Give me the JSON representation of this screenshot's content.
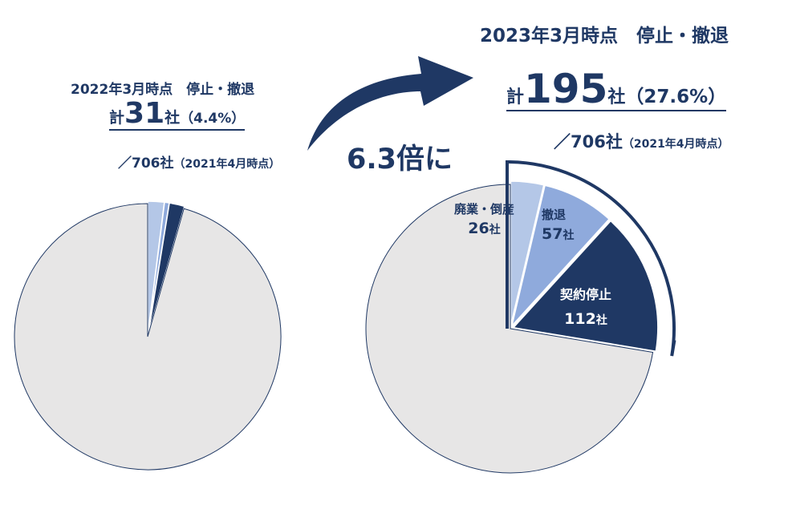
{
  "chart_data": [
    {
      "type": "pie",
      "title": "2022年3月時点　停止・撤退",
      "total_prefix": "計",
      "total_value": "31",
      "total_suffix": "社",
      "total_pct": "（4.4%）",
      "denominator": "／706社",
      "denominator_note": "（2021年4月時点）",
      "base_total": 706,
      "slices": [
        {
          "label": "",
          "value": 14,
          "color": "#b4c7e7",
          "exploded": true
        },
        {
          "label": "",
          "value": 4,
          "color": "#8faadc",
          "exploded": true
        },
        {
          "label": "",
          "value": 13,
          "color": "#1f3864",
          "exploded": true
        },
        {
          "label": "",
          "value": 675,
          "color": "#e7e6e6",
          "exploded": false
        }
      ]
    },
    {
      "type": "pie",
      "title": "2023年3月時点　停止・撤退",
      "total_prefix": "計",
      "total_value": "195",
      "total_suffix": "社",
      "total_pct": "（27.6%）",
      "denominator": "／706社",
      "denominator_note": "（2021年4月時点）",
      "base_total": 706,
      "slices": [
        {
          "label": "廃業・倒産",
          "count": "26",
          "unit": "社",
          "value": 26,
          "color": "#b4c7e7",
          "exploded": true
        },
        {
          "label": "撤退",
          "count": "57",
          "unit": "社",
          "value": 57,
          "color": "#8faadc",
          "exploded": true
        },
        {
          "label": "契約停止",
          "count": "112",
          "unit": "社",
          "value": 112,
          "color": "#1f3864",
          "exploded": true
        },
        {
          "label": "",
          "value": 511,
          "color": "#e7e6e6",
          "exploded": false
        }
      ]
    }
  ],
  "ratio_label": "6.3倍に",
  "colors": {
    "accent": "#1f3864",
    "other": "#e7e6e6"
  }
}
